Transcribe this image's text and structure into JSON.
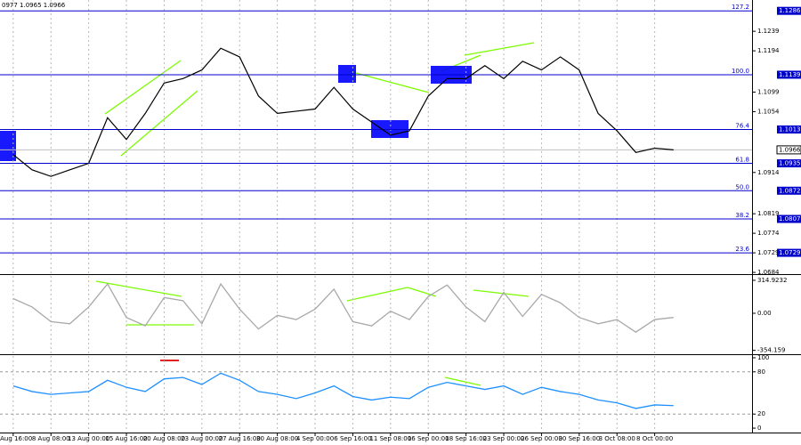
{
  "chart_data": [
    {
      "type": "line",
      "title": "0977 1.0965 1.0966",
      "x": [
        0,
        0.5,
        1,
        1.5,
        2,
        2.5,
        3,
        3.5,
        4,
        4.5,
        5,
        5.5,
        6,
        6.5,
        7,
        7.5,
        8,
        8.5,
        9,
        9.5,
        10,
        10.5,
        11,
        11.5,
        12,
        12.5,
        13,
        13.5,
        14,
        14.5,
        15,
        15.5,
        16,
        16.5,
        17,
        17.5
      ],
      "series": [
        {
          "name": "EUR/USD",
          "color": "#000000",
          "values": [
            1.0955,
            1.092,
            1.0905,
            1.092,
            1.0935,
            1.104,
            1.099,
            1.105,
            1.112,
            1.113,
            1.115,
            1.12,
            1.118,
            1.109,
            1.105,
            1.1055,
            1.106,
            1.111,
            1.106,
            1.103,
            1.1,
            1.101,
            1.109,
            1.113,
            1.113,
            1.116,
            1.113,
            1.117,
            1.115,
            1.118,
            1.115,
            1.105,
            1.101,
            1.096,
            1.097,
            1.0966
          ]
        }
      ],
      "xlim": [
        -0.35,
        19.58
      ],
      "xticks": [
        {
          "value": 0,
          "label": "5 Aug 16:00"
        },
        {
          "value": 1,
          "label": "8 Aug 08:00"
        },
        {
          "value": 2,
          "label": "13 Aug 00:00"
        },
        {
          "value": 3,
          "label": "15 Aug 16:00"
        },
        {
          "value": 4,
          "label": "20 Aug 08:00"
        },
        {
          "value": 5,
          "label": "23 Aug 00:00"
        },
        {
          "value": 6,
          "label": "27 Aug 16:00"
        },
        {
          "value": 7,
          "label": "30 Aug 08:00"
        },
        {
          "value": 8,
          "label": "4 Sep 00:00"
        },
        {
          "value": 9,
          "label": "6 Sep 16:00"
        },
        {
          "value": 10,
          "label": "11 Sep 08:00"
        },
        {
          "value": 11,
          "label": "16 Sep 00:00"
        },
        {
          "value": 12,
          "label": "18 Sep 16:00"
        },
        {
          "value": 13,
          "label": "23 Sep 00:00"
        },
        {
          "value": 14,
          "label": "26 Sep 00:00"
        },
        {
          "value": 15,
          "label": "30 Sep 16:00"
        },
        {
          "value": 16,
          "label": "3 Oct 08:00"
        },
        {
          "value": 17,
          "label": "8 Oct 00:00"
        }
      ],
      "ylim": [
        1.068,
        1.1311
      ],
      "yticks": [
        1.1239,
        1.1194,
        1.1099,
        1.1054,
        1.0914,
        1.0819,
        1.0774,
        1.0729,
        1.0684
      ],
      "fib_levels": [
        {
          "label": "127.2",
          "price": 1.1286
        },
        {
          "label": "100.0",
          "price": 1.1139
        },
        {
          "label": "76.4",
          "price": 1.1013
        },
        {
          "label": "61.8",
          "price": 1.0935
        },
        {
          "label": "50.0",
          "price": 1.0872
        },
        {
          "label": "38.2",
          "price": 1.0807
        },
        {
          "label": "23.6",
          "price": 1.0729
        }
      ],
      "fib_color": "#0000cc",
      "last_price": 1.0966,
      "grid": true
    },
    {
      "type": "line",
      "series": [
        {
          "name": "CCI",
          "color": "#a9a9a9",
          "values": [
            140,
            60,
            -80,
            -100,
            60,
            280,
            -40,
            -120,
            150,
            120,
            -100,
            280,
            40,
            -150,
            -20,
            -60,
            40,
            230,
            -80,
            -120,
            20,
            -60,
            160,
            270,
            60,
            -80,
            200,
            -30,
            180,
            100,
            -40,
            -100,
            -60,
            -180,
            -60,
            -40
          ]
        }
      ],
      "ylim": [
        -391,
        357
      ],
      "yticks": [
        314.9232,
        {
          "value": 0,
          "label": "0.00"
        },
        -354.159
      ]
    },
    {
      "type": "line",
      "series": [
        {
          "name": "RSI",
          "color": "#1e90ff",
          "values": [
            60,
            52,
            48,
            50,
            52,
            68,
            58,
            52,
            70,
            72,
            62,
            78,
            68,
            52,
            48,
            42,
            50,
            60,
            45,
            40,
            44,
            42,
            58,
            65,
            60,
            55,
            60,
            48,
            58,
            52,
            48,
            40,
            36,
            28,
            33,
            32
          ]
        }
      ],
      "ylim": [
        -5,
        102.5
      ],
      "yticks": [
        100,
        80,
        20,
        0
      ],
      "levels": [
        80,
        20
      ]
    }
  ]
}
